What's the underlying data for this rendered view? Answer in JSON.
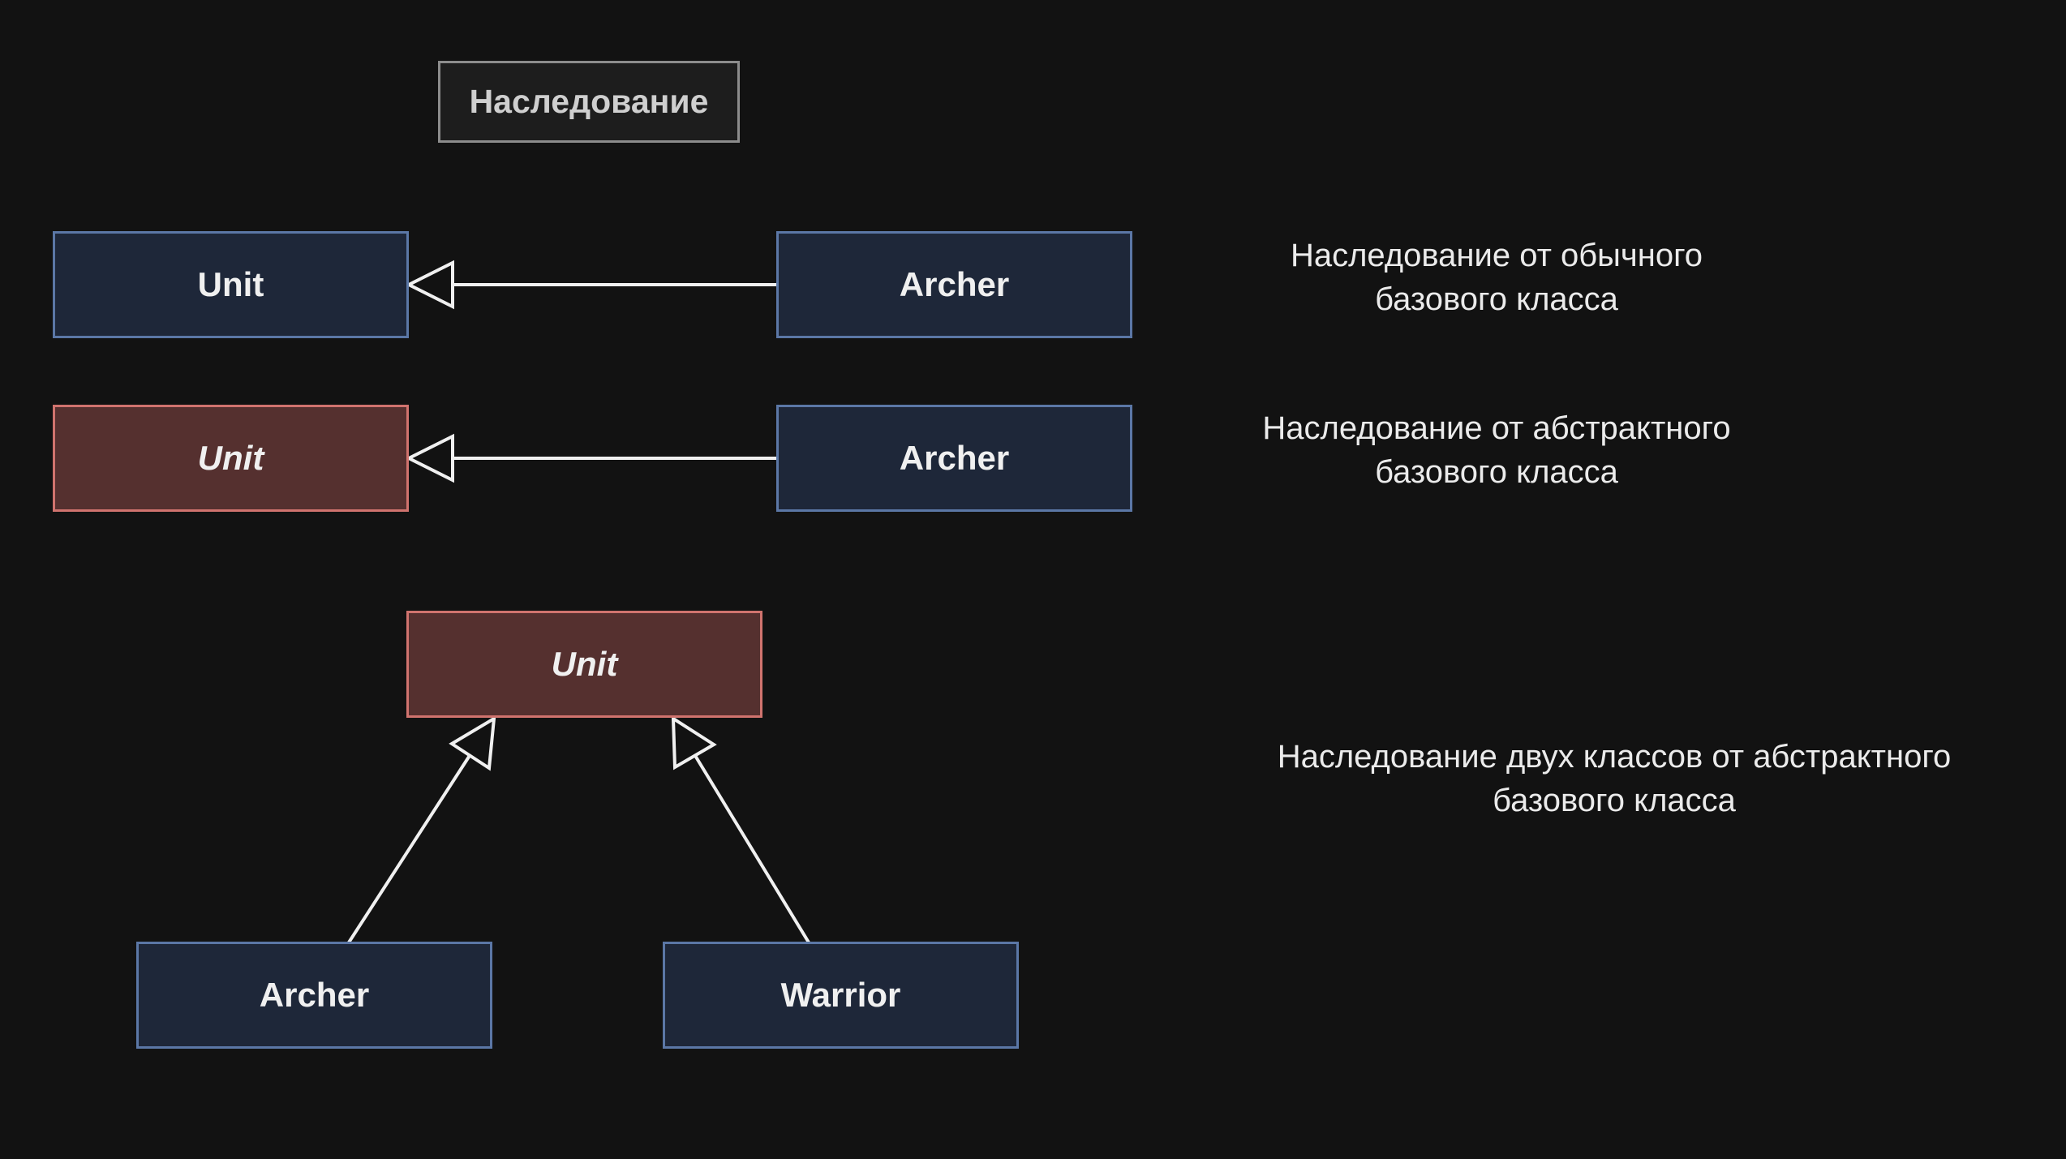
{
  "title": "Наследование",
  "row1": {
    "base": "Unit",
    "derived": "Archer",
    "caption_line1": "Наследование от обычного",
    "caption_line2": "базового класса"
  },
  "row2": {
    "base": "Unit",
    "derived": "Archer",
    "caption_line1": "Наследование от абстрактного",
    "caption_line2": "базового класса"
  },
  "row3": {
    "base": "Unit",
    "derived_left": "Archer",
    "derived_right": "Warrior",
    "caption_line1": "Наследование двух классов от абстрактного",
    "caption_line2": "базового класса"
  },
  "colors": {
    "background": "#121212",
    "class_fill": "#1e2739",
    "class_border": "#5b77a6",
    "abstract_fill": "#55302f",
    "abstract_border": "#d0736e",
    "arrow": "#f0f0f0"
  }
}
